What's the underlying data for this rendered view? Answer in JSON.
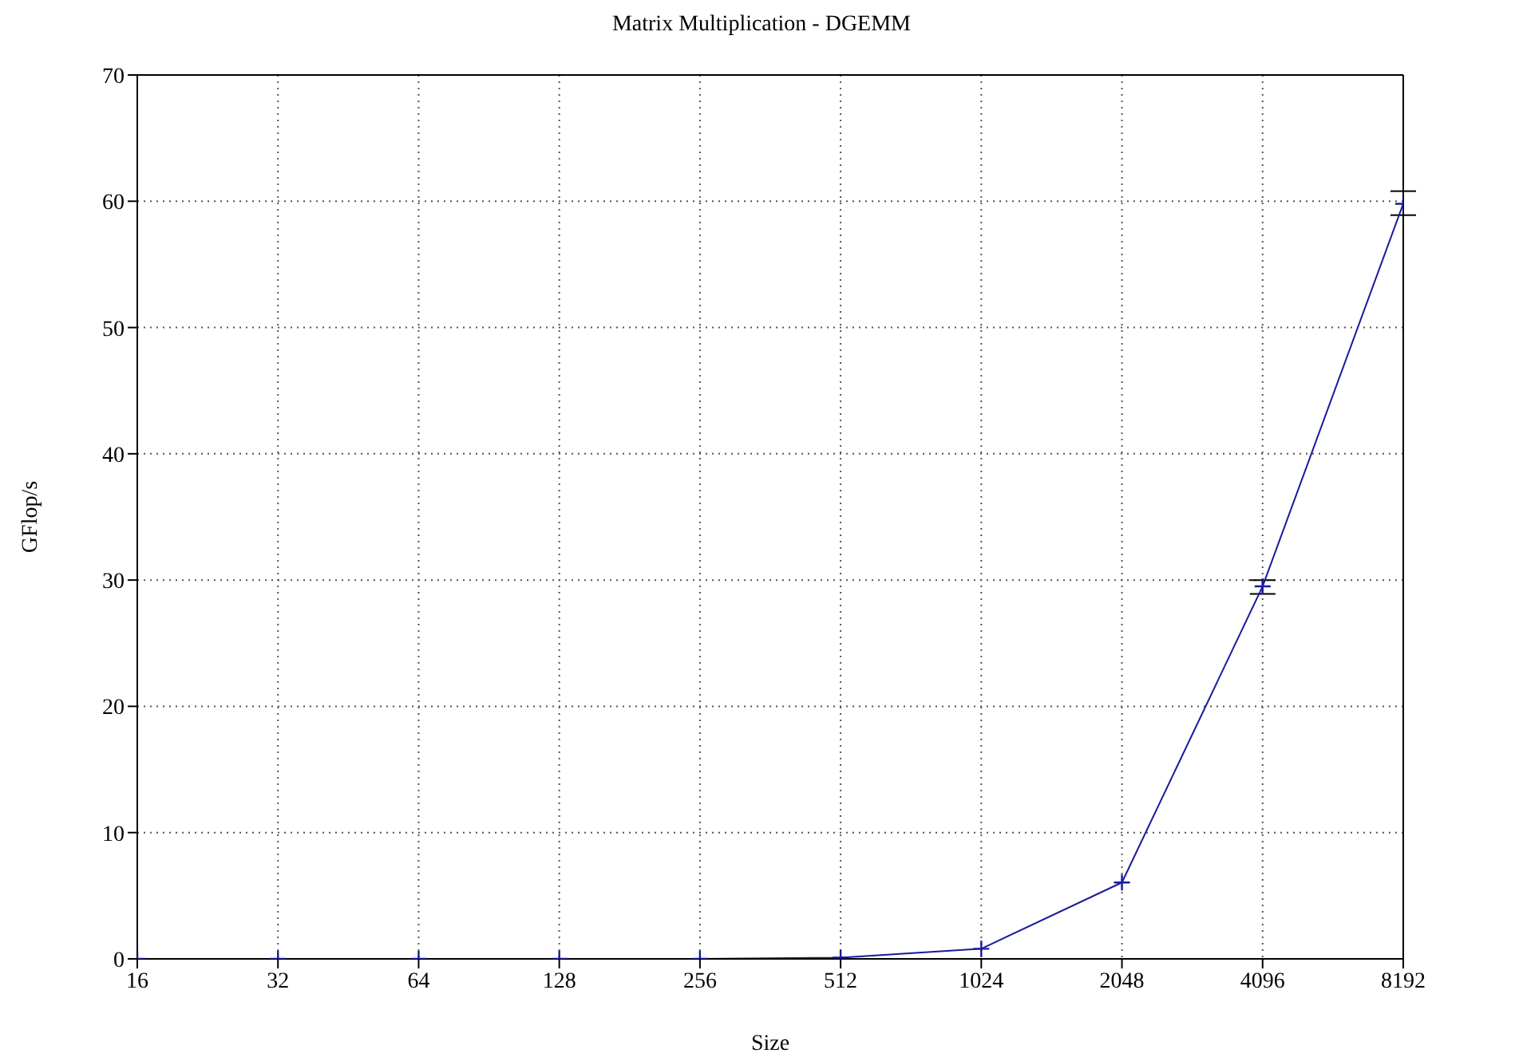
{
  "chart_data": {
    "type": "line",
    "title": "Matrix Multiplication - DGEMM",
    "xlabel": "Size",
    "ylabel": "GFlop/s",
    "x": [
      16,
      32,
      64,
      128,
      256,
      512,
      1024,
      2048,
      4096,
      8192
    ],
    "series": [
      {
        "color": "#1a1a9c",
        "values": [
          0,
          0,
          0,
          0,
          0,
          0.1,
          0.8,
          6.05,
          29.5,
          59.8
        ],
        "errors": [
          null,
          null,
          null,
          null,
          null,
          null,
          null,
          null,
          [
            28.9,
            30
          ],
          [
            58.9,
            60.8
          ]
        ]
      }
    ],
    "log": "x",
    "xlim": [
      16,
      8192
    ],
    "xticks": [
      16,
      32,
      64,
      128,
      256,
      512,
      1024,
      2048,
      4096,
      8192
    ],
    "ylim": [
      0,
      70
    ],
    "yticks": [
      0,
      10,
      20,
      30,
      40,
      50,
      60,
      70
    ],
    "grid": true,
    "marker": "cross",
    "line_style": "solid"
  }
}
